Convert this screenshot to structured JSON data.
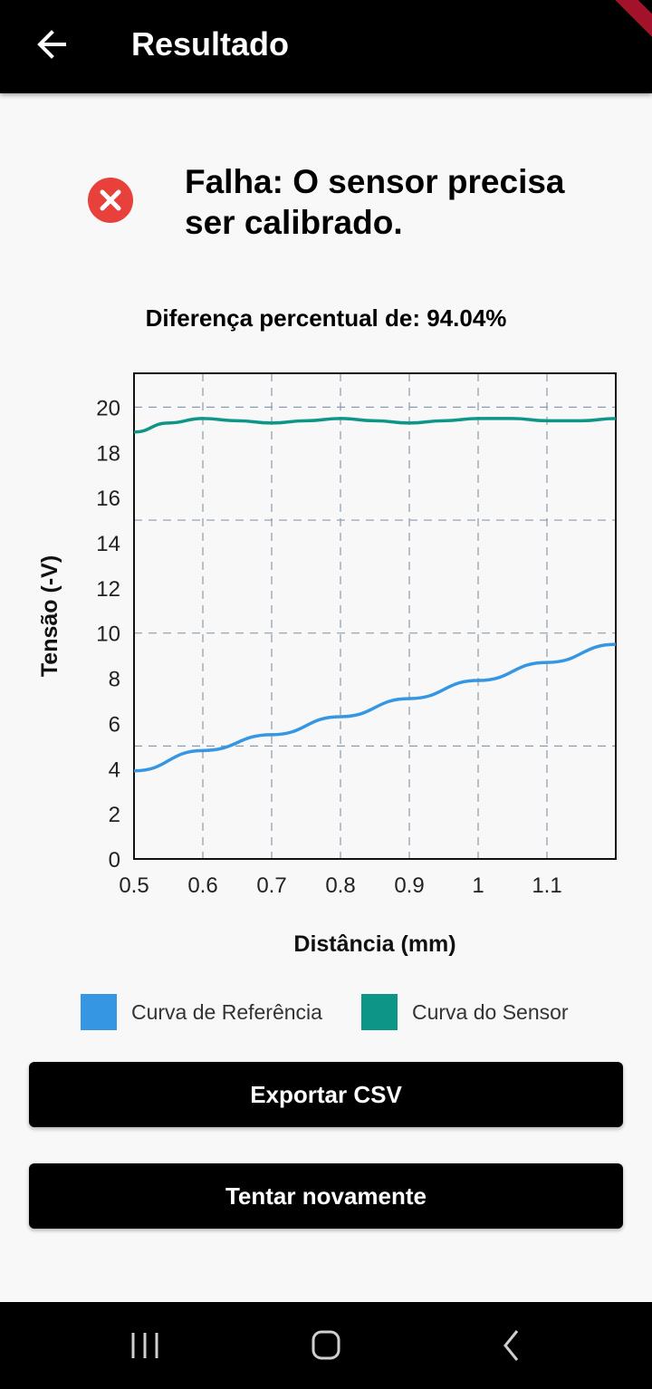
{
  "app_bar": {
    "title": "Resultado",
    "back_icon": "arrow-back-icon"
  },
  "status": {
    "icon": "error-circle-icon",
    "icon_color": "#e8403b",
    "message": "Falha: O sensor precisa ser calibrado."
  },
  "difference_text": "Diferença percentual de: 94.04%",
  "chart_data": {
    "type": "line",
    "xlabel": "Distância (mm)",
    "ylabel": "Tensão (-V)",
    "xlim": [
      0.5,
      1.2
    ],
    "ylim": [
      0,
      21.5
    ],
    "x_ticks": [
      0.5,
      0.6,
      0.7,
      0.8,
      0.9,
      1,
      1.1
    ],
    "x_tick_labels": [
      "0.5",
      "0.6",
      "0.7",
      "0.8",
      "0.9",
      "1",
      "1.1"
    ],
    "y_ticks": [
      0,
      2,
      4,
      6,
      8,
      10,
      12,
      14,
      16,
      18,
      20
    ],
    "y_tick_labels": [
      "0",
      "2",
      "4",
      "6",
      "8",
      "10",
      "12",
      "14",
      "16",
      "18",
      "20"
    ],
    "grid": true,
    "legend_position": "bottom",
    "series": [
      {
        "name": "Curva de Referência",
        "color": "#3596e4",
        "x": [
          0.5,
          0.6,
          0.7,
          0.8,
          0.9,
          1.0,
          1.1,
          1.2
        ],
        "y": [
          3.9,
          4.8,
          5.5,
          6.3,
          7.1,
          7.9,
          8.7,
          9.5
        ]
      },
      {
        "name": "Curva do Sensor",
        "color": "#0d9688",
        "x": [
          0.5,
          0.55,
          0.6,
          0.65,
          0.7,
          0.75,
          0.8,
          0.85,
          0.9,
          0.95,
          1.0,
          1.05,
          1.1,
          1.15,
          1.2
        ],
        "y": [
          18.9,
          19.3,
          19.5,
          19.4,
          19.3,
          19.4,
          19.5,
          19.4,
          19.3,
          19.4,
          19.5,
          19.5,
          19.4,
          19.4,
          19.5
        ]
      }
    ]
  },
  "buttons": {
    "export_label": "Exportar CSV",
    "retry_label": "Tentar novamente"
  },
  "nav_bar": {
    "recents_icon": "recents-icon",
    "home_icon": "home-icon",
    "back_icon": "nav-back-icon"
  }
}
